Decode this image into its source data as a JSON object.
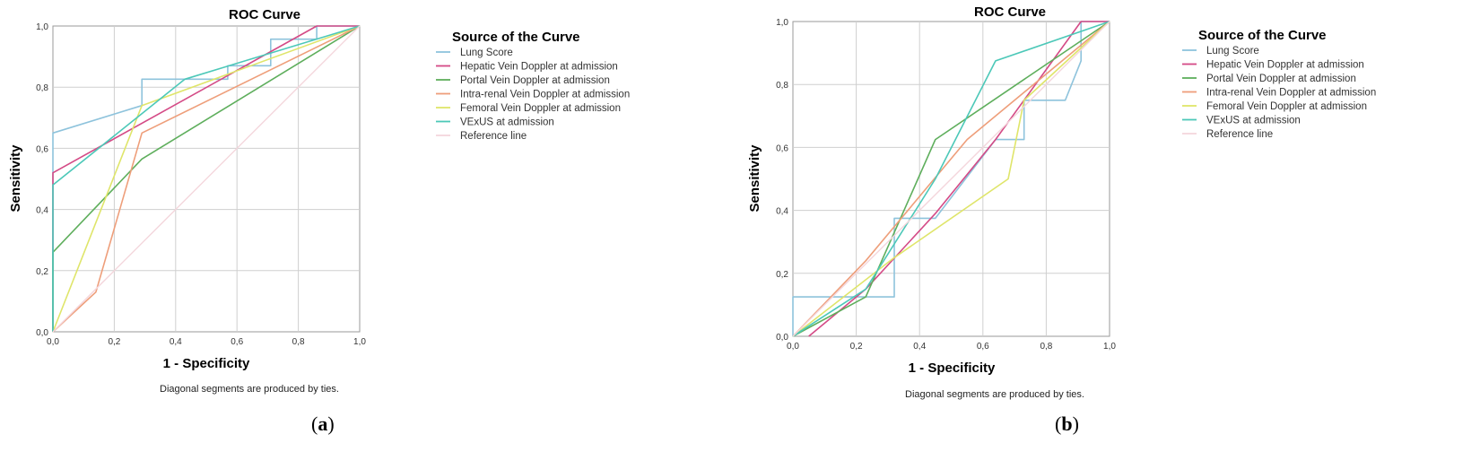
{
  "panels": [
    {
      "id": "a",
      "caption_open": "(",
      "caption_letter": "a",
      "caption_close": ")",
      "footnote": "Diagonal segments are produced by ties.",
      "chart_data": {
        "type": "line",
        "title": "ROC Curve",
        "xlabel": "1 - Specificity",
        "ylabel": "Sensitivity",
        "xlim": [
          0,
          1
        ],
        "ylim": [
          0,
          1
        ],
        "x_ticks": [
          "0,0",
          "0,2",
          "0,4",
          "0,6",
          "0,8",
          "1,0"
        ],
        "y_ticks": [
          "0,0",
          "0,2",
          "0,4",
          "0,6",
          "0,8",
          "1,0"
        ],
        "grid": true,
        "legend_title": "Source of the Curve",
        "legend_position": "right",
        "series": [
          {
            "name": "Lung Score",
            "color": "#8ec3dc",
            "step": true,
            "points": [
              [
                0,
                0
              ],
              [
                0,
                0.65
              ],
              [
                0.29,
                0.74
              ],
              [
                0.29,
                0.826
              ],
              [
                0.57,
                0.826
              ],
              [
                0.57,
                0.87
              ],
              [
                0.71,
                0.87
              ],
              [
                0.71,
                0.957
              ],
              [
                0.86,
                0.957
              ],
              [
                0.86,
                1
              ],
              [
                1,
                1
              ]
            ]
          },
          {
            "name": "Hepatic Vein Doppler at admission",
            "color": "#d44a86",
            "points": [
              [
                0,
                0
              ],
              [
                0,
                0.52
              ],
              [
                0.86,
                1
              ],
              [
                1,
                1
              ]
            ]
          },
          {
            "name": "Portal Vein Doppler at admission",
            "color": "#5eae5c",
            "points": [
              [
                0,
                0
              ],
              [
                0,
                0.26
              ],
              [
                0.29,
                0.565
              ],
              [
                1,
                1
              ]
            ]
          },
          {
            "name": "Intra-renal Vein Doppler at admission",
            "color": "#ee9e7a",
            "points": [
              [
                0,
                0
              ],
              [
                0.14,
                0.13
              ],
              [
                0.29,
                0.65
              ],
              [
                1,
                1
              ]
            ]
          },
          {
            "name": "Femoral Vein Doppler at admission",
            "color": "#dfe56a",
            "points": [
              [
                0,
                0
              ],
              [
                0.29,
                0.74
              ],
              [
                1,
                1
              ]
            ]
          },
          {
            "name": "VExUS at admission",
            "color": "#4cc8b8",
            "points": [
              [
                0,
                0
              ],
              [
                0,
                0.48
              ],
              [
                0.43,
                0.826
              ],
              [
                1,
                1
              ]
            ]
          },
          {
            "name": "Reference line",
            "color": "#f4d6dc",
            "points": [
              [
                0,
                0
              ],
              [
                1,
                1
              ]
            ]
          }
        ]
      }
    },
    {
      "id": "b",
      "caption_open": "(",
      "caption_letter": "b",
      "caption_close": ")",
      "footnote": "Diagonal segments are produced by ties.",
      "chart_data": {
        "type": "line",
        "title": "ROC Curve",
        "xlabel": "1 - Specificity",
        "ylabel": "Sensitivity",
        "xlim": [
          0,
          1
        ],
        "ylim": [
          0,
          1
        ],
        "x_ticks": [
          "0,0",
          "0,2",
          "0,4",
          "0,6",
          "0,8",
          "1,0"
        ],
        "y_ticks": [
          "0,0",
          "0,2",
          "0,4",
          "0,6",
          "0,8",
          "1,0"
        ],
        "grid": true,
        "legend_title": "Source of the Curve",
        "legend_position": "right",
        "series": [
          {
            "name": "Lung Score",
            "color": "#8ec3dc",
            "step": true,
            "points": [
              [
                0,
                0
              ],
              [
                0,
                0.125
              ],
              [
                0.32,
                0.125
              ],
              [
                0.32,
                0.375
              ],
              [
                0.45,
                0.375
              ],
              [
                0.64,
                0.625
              ],
              [
                0.73,
                0.625
              ],
              [
                0.73,
                0.75
              ],
              [
                0.86,
                0.75
              ],
              [
                0.91,
                0.875
              ],
              [
                0.91,
                1
              ],
              [
                1,
                1
              ]
            ]
          },
          {
            "name": "Hepatic Vein Doppler at admission",
            "color": "#d44a86",
            "points": [
              [
                0.05,
                0
              ],
              [
                0.23,
                0.15
              ],
              [
                0.45,
                0.39
              ],
              [
                0.64,
                0.625
              ],
              [
                0.91,
                1
              ],
              [
                1,
                1
              ]
            ]
          },
          {
            "name": "Portal Vein Doppler at admission",
            "color": "#5eae5c",
            "points": [
              [
                0,
                0
              ],
              [
                0.23,
                0.125
              ],
              [
                0.45,
                0.625
              ],
              [
                1,
                1
              ]
            ]
          },
          {
            "name": "Intra-renal Vein Doppler at admission",
            "color": "#ee9e7a",
            "points": [
              [
                0,
                0
              ],
              [
                0.23,
                0.24
              ],
              [
                0.55,
                0.625
              ],
              [
                1,
                1
              ]
            ]
          },
          {
            "name": "Femoral Vein Doppler at admission",
            "color": "#dfe56a",
            "points": [
              [
                0,
                0
              ],
              [
                0.32,
                0.25
              ],
              [
                0.68,
                0.5
              ],
              [
                0.73,
                0.75
              ],
              [
                1,
                1
              ]
            ]
          },
          {
            "name": "VExUS at admission",
            "color": "#4cc8b8",
            "points": [
              [
                0,
                0
              ],
              [
                0.23,
                0.15
              ],
              [
                0.45,
                0.5
              ],
              [
                0.64,
                0.875
              ],
              [
                1,
                1
              ]
            ]
          },
          {
            "name": "Reference line",
            "color": "#f4d6dc",
            "points": [
              [
                0,
                0
              ],
              [
                1,
                1
              ]
            ]
          }
        ]
      }
    }
  ]
}
